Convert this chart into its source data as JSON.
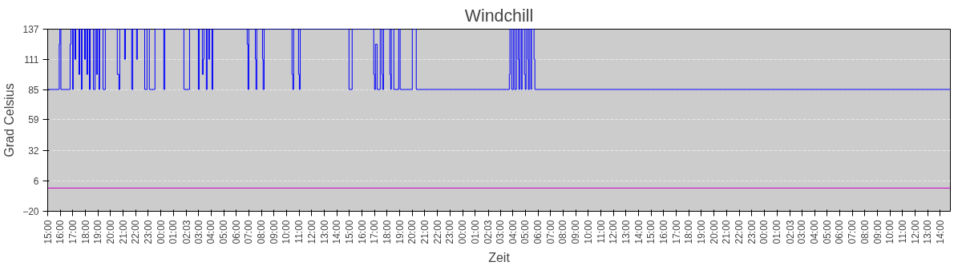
{
  "chart_data": {
    "type": "step",
    "title": "Windchill",
    "xlabel": "Zeit",
    "ylabel": "Grad Celsius",
    "xlim": [
      "2000-01-01T15:00",
      "2000-01-04T14:48"
    ],
    "ylim": [
      -20,
      137
    ],
    "yticks": [
      -20,
      6,
      32,
      59,
      85,
      111,
      137
    ],
    "xticks": [
      {
        "value": "2000-01-01T15:00",
        "label": "15:00"
      },
      {
        "value": "2000-01-01T16:00",
        "label": "16:00"
      },
      {
        "value": "2000-01-01T17:00",
        "label": "17:00"
      },
      {
        "value": "2000-01-01T18:00",
        "label": "18:00"
      },
      {
        "value": "2000-01-01T19:00",
        "label": "19:00"
      },
      {
        "value": "2000-01-01T20:00",
        "label": "20:00"
      },
      {
        "value": "2000-01-01T21:00",
        "label": "21:00"
      },
      {
        "value": "2000-01-01T22:00",
        "label": "22:00"
      },
      {
        "value": "2000-01-01T23:00",
        "label": "23:00"
      },
      {
        "value": "2000-01-02T00:00",
        "label": "00:00"
      },
      {
        "value": "2000-01-02T01:00",
        "label": "01:00"
      },
      {
        "value": "2000-01-02T02:03",
        "label": "02:03"
      },
      {
        "value": "2000-01-02T03:00",
        "label": "03:00"
      },
      {
        "value": "2000-01-02T04:00",
        "label": "04:00"
      },
      {
        "value": "2000-01-02T05:00",
        "label": "05:00"
      },
      {
        "value": "2000-01-02T06:00",
        "label": "06:00"
      },
      {
        "value": "2000-01-02T07:00",
        "label": "07:00"
      },
      {
        "value": "2000-01-02T08:00",
        "label": "08:00"
      },
      {
        "value": "2000-01-02T09:00",
        "label": "09:00"
      },
      {
        "value": "2000-01-02T10:00",
        "label": "10:00"
      },
      {
        "value": "2000-01-02T11:00",
        "label": "11:00"
      },
      {
        "value": "2000-01-02T12:00",
        "label": "12:00"
      },
      {
        "value": "2000-01-02T13:00",
        "label": "13:00"
      },
      {
        "value": "2000-01-02T14:00",
        "label": "14:00"
      },
      {
        "value": "2000-01-02T15:00",
        "label": "15:00"
      },
      {
        "value": "2000-01-02T16:00",
        "label": "16:00"
      },
      {
        "value": "2000-01-02T17:00",
        "label": "17:00"
      },
      {
        "value": "2000-01-02T18:00",
        "label": "18:00"
      },
      {
        "value": "2000-01-02T19:00",
        "label": "19:00"
      },
      {
        "value": "2000-01-02T20:00",
        "label": "20:00"
      },
      {
        "value": "2000-01-02T21:00",
        "label": "21:00"
      },
      {
        "value": "2000-01-02T22:00",
        "label": "22:00"
      },
      {
        "value": "2000-01-02T23:00",
        "label": "23:00"
      },
      {
        "value": "2000-01-03T00:00",
        "label": "00:00"
      },
      {
        "value": "2000-01-03T01:00",
        "label": "01:00"
      },
      {
        "value": "2000-01-03T02:03",
        "label": "02:03"
      },
      {
        "value": "2000-01-03T03:00",
        "label": "03:00"
      },
      {
        "value": "2000-01-03T04:00",
        "label": "04:00"
      },
      {
        "value": "2000-01-03T05:00",
        "label": "05:00"
      },
      {
        "value": "2000-01-03T06:00",
        "label": "06:00"
      },
      {
        "value": "2000-01-03T07:00",
        "label": "07:00"
      },
      {
        "value": "2000-01-03T08:00",
        "label": "08:00"
      },
      {
        "value": "2000-01-03T09:00",
        "label": "09:00"
      },
      {
        "value": "2000-01-03T10:00",
        "label": "10:00"
      },
      {
        "value": "2000-01-03T11:00",
        "label": "11:00"
      },
      {
        "value": "2000-01-03T12:00",
        "label": "12:00"
      },
      {
        "value": "2000-01-03T13:00",
        "label": "13:00"
      },
      {
        "value": "2000-01-03T14:00",
        "label": "14:00"
      },
      {
        "value": "2000-01-03T15:00",
        "label": "15:00"
      },
      {
        "value": "2000-01-03T16:00",
        "label": "16:00"
      },
      {
        "value": "2000-01-03T17:00",
        "label": "17:00"
      },
      {
        "value": "2000-01-03T18:00",
        "label": "18:00"
      },
      {
        "value": "2000-01-03T19:00",
        "label": "19:00"
      },
      {
        "value": "2000-01-03T20:00",
        "label": "20:00"
      },
      {
        "value": "2000-01-03T21:00",
        "label": "21:00"
      },
      {
        "value": "2000-01-03T22:00",
        "label": "22:00"
      },
      {
        "value": "2000-01-03T23:00",
        "label": "23:00"
      },
      {
        "value": "2000-01-04T00:00",
        "label": "00:00"
      },
      {
        "value": "2000-01-04T01:00",
        "label": "01:00"
      },
      {
        "value": "2000-01-04T02:03",
        "label": "02:03"
      },
      {
        "value": "2000-01-04T03:00",
        "label": "03:00"
      },
      {
        "value": "2000-01-04T04:00",
        "label": "04:00"
      },
      {
        "value": "2000-01-04T05:00",
        "label": "05:00"
      },
      {
        "value": "2000-01-04T06:00",
        "label": "06:00"
      },
      {
        "value": "2000-01-04T07:00",
        "label": "07:00"
      },
      {
        "value": "2000-01-04T08:00",
        "label": "08:00"
      },
      {
        "value": "2000-01-04T09:00",
        "label": "09:00"
      },
      {
        "value": "2000-01-04T10:00",
        "label": "10:00"
      },
      {
        "value": "2000-01-04T11:00",
        "label": "11:00"
      },
      {
        "value": "2000-01-04T12:00",
        "label": "12:00"
      },
      {
        "value": "2000-01-04T13:00",
        "label": "13:00"
      },
      {
        "value": "2000-01-04T14:00",
        "label": "14:00"
      }
    ],
    "grid": "y",
    "series": [
      {
        "color": "#0000ff",
        "x": [
          "2000-01-01T15:00",
          "2000-01-01T15:55",
          "2000-01-01T15:58",
          "2000-01-01T16:03",
          "2000-01-01T16:47",
          "2000-01-01T16:51",
          "2000-01-01T16:59",
          "2000-01-01T17:02",
          "2000-01-01T17:10",
          "2000-01-01T17:14",
          "2000-01-01T17:29",
          "2000-01-01T17:33",
          "2000-01-01T17:41",
          "2000-01-01T17:44",
          "2000-01-01T17:56",
          "2000-01-01T18:00",
          "2000-01-01T18:07",
          "2000-01-01T18:11",
          "2000-01-01T18:19",
          "2000-01-01T18:23",
          "2000-01-01T18:38",
          "2000-01-01T18:46",
          "2000-01-01T18:53",
          "2000-01-01T18:57",
          "2000-01-01T19:05",
          "2000-01-01T19:08",
          "2000-01-01T19:24",
          "2000-01-01T19:35",
          "2000-01-01T20:32",
          "2000-01-01T20:40",
          "2000-01-01T20:44",
          "2000-01-01T21:07",
          "2000-01-01T21:11",
          "2000-01-01T21:41",
          "2000-01-01T21:46",
          "2000-01-01T22:04",
          "2000-01-01T22:08",
          "2000-01-01T22:43",
          "2000-01-01T22:54",
          "2000-01-01T23:05",
          "2000-01-01T23:32",
          "2000-01-02T00:14",
          "2000-01-02T00:19",
          "2000-01-02T01:50",
          "2000-01-02T02:17",
          "2000-01-02T02:59",
          "2000-01-02T03:03",
          "2000-01-02T03:18",
          "2000-01-02T03:22",
          "2000-01-02T03:26",
          "2000-01-02T03:37",
          "2000-01-02T03:41",
          "2000-01-02T03:49",
          "2000-01-02T03:52",
          "2000-01-02T04:04",
          "2000-01-02T04:08",
          "2000-01-02T06:52",
          "2000-01-02T06:56",
          "2000-01-02T07:00",
          "2000-01-02T07:31",
          "2000-01-02T07:34",
          "2000-01-02T07:38",
          "2000-01-02T08:05",
          "2000-01-02T08:08",
          "2000-01-02T08:13",
          "2000-01-02T10:26",
          "2000-01-02T10:30",
          "2000-01-02T10:34",
          "2000-01-02T10:57",
          "2000-01-02T11:01",
          "2000-01-02T11:05",
          "2000-01-02T14:58",
          "2000-01-02T15:13",
          "2000-01-02T16:56",
          "2000-01-02T17:00",
          "2000-01-02T17:04",
          "2000-01-02T17:12",
          "2000-01-02T17:27",
          "2000-01-02T17:35",
          "2000-01-02T17:38",
          "2000-01-02T17:43",
          "2000-01-02T18:13",
          "2000-01-02T18:17",
          "2000-01-02T18:20",
          "2000-01-02T18:32",
          "2000-01-02T18:55",
          "2000-01-02T19:02",
          "2000-01-02T20:00",
          "2000-01-02T20:19",
          "2000-01-03T03:43",
          "2000-01-03T03:46",
          "2000-01-03T03:54",
          "2000-01-03T04:02",
          "2000-01-03T04:09",
          "2000-01-03T04:17",
          "2000-01-03T04:25",
          "2000-01-03T04:29",
          "2000-01-03T04:32",
          "2000-01-03T04:40",
          "2000-01-03T04:44",
          "2000-01-03T04:55",
          "2000-01-03T04:59",
          "2000-01-03T05:03",
          "2000-01-03T05:11",
          "2000-01-03T05:14",
          "2000-01-03T05:18",
          "2000-01-03T05:26",
          "2000-01-03T05:29",
          "2000-01-03T05:41",
          "2000-01-03T05:45",
          "2000-01-04T14:48"
        ],
        "values": [
          85,
          124,
          137,
          85,
          124,
          137,
          85,
          137,
          111,
          137,
          98,
          137,
          85,
          137,
          111,
          137,
          98,
          137,
          85,
          137,
          85,
          137,
          98,
          137,
          85,
          137,
          85,
          137,
          98,
          85,
          137,
          111,
          137,
          85,
          137,
          111,
          137,
          85,
          137,
          85,
          137,
          85,
          137,
          85,
          137,
          85,
          137,
          98,
          111,
          137,
          85,
          137,
          111,
          137,
          85,
          137,
          124,
          85,
          137,
          111,
          85,
          137,
          111,
          85,
          137,
          98,
          85,
          137,
          98,
          85,
          137,
          85,
          137,
          98,
          85,
          124,
          85,
          137,
          98,
          85,
          137,
          98,
          85,
          137,
          85,
          137,
          85,
          137,
          85,
          98,
          137,
          85,
          137,
          85,
          137,
          111,
          85,
          137,
          85,
          137,
          98,
          85,
          137,
          111,
          85,
          137,
          85,
          137,
          111,
          85,
          85
        ]
      },
      {
        "type": "line",
        "color": "#cc00cc",
        "x": [
          "2000-01-01T15:00",
          "2000-01-04T14:48"
        ],
        "values": [
          0,
          0
        ]
      }
    ]
  }
}
